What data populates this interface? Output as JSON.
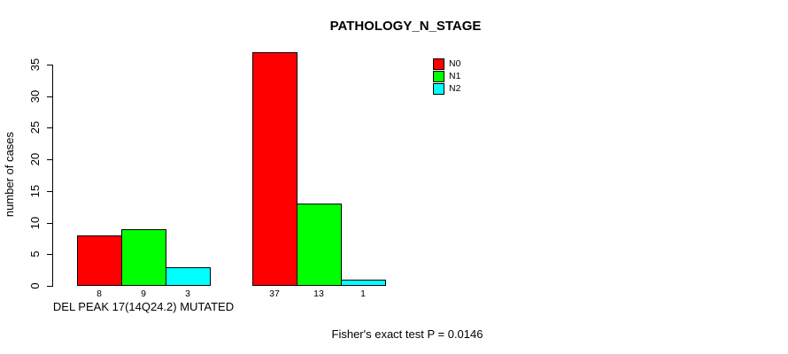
{
  "chart_data": {
    "type": "bar",
    "title": "PATHOLOGY_N_STAGE",
    "ylabel": "number of cases",
    "ylim": [
      0,
      35
    ],
    "yticks": [
      0,
      5,
      10,
      15,
      20,
      25,
      30,
      35
    ],
    "grid": false,
    "legend_position": "top-right",
    "categories": [
      "DEL PEAK 17(14Q24.2) MUTATED",
      ""
    ],
    "series": [
      {
        "name": "N0",
        "color": "#FF0000",
        "values": [
          8,
          37
        ]
      },
      {
        "name": "N1",
        "color": "#00FF00",
        "values": [
          9,
          13
        ]
      },
      {
        "name": "N2",
        "color": "#00FFFF",
        "values": [
          3,
          1
        ]
      }
    ],
    "bar_value_labels": [
      [
        8,
        9,
        3
      ],
      [
        37,
        13,
        1
      ]
    ],
    "footer": "Fisher's exact test P = 0.0146"
  },
  "colors": {
    "axis": "#000000",
    "background": "#FFFFFF",
    "text": "#000000"
  }
}
